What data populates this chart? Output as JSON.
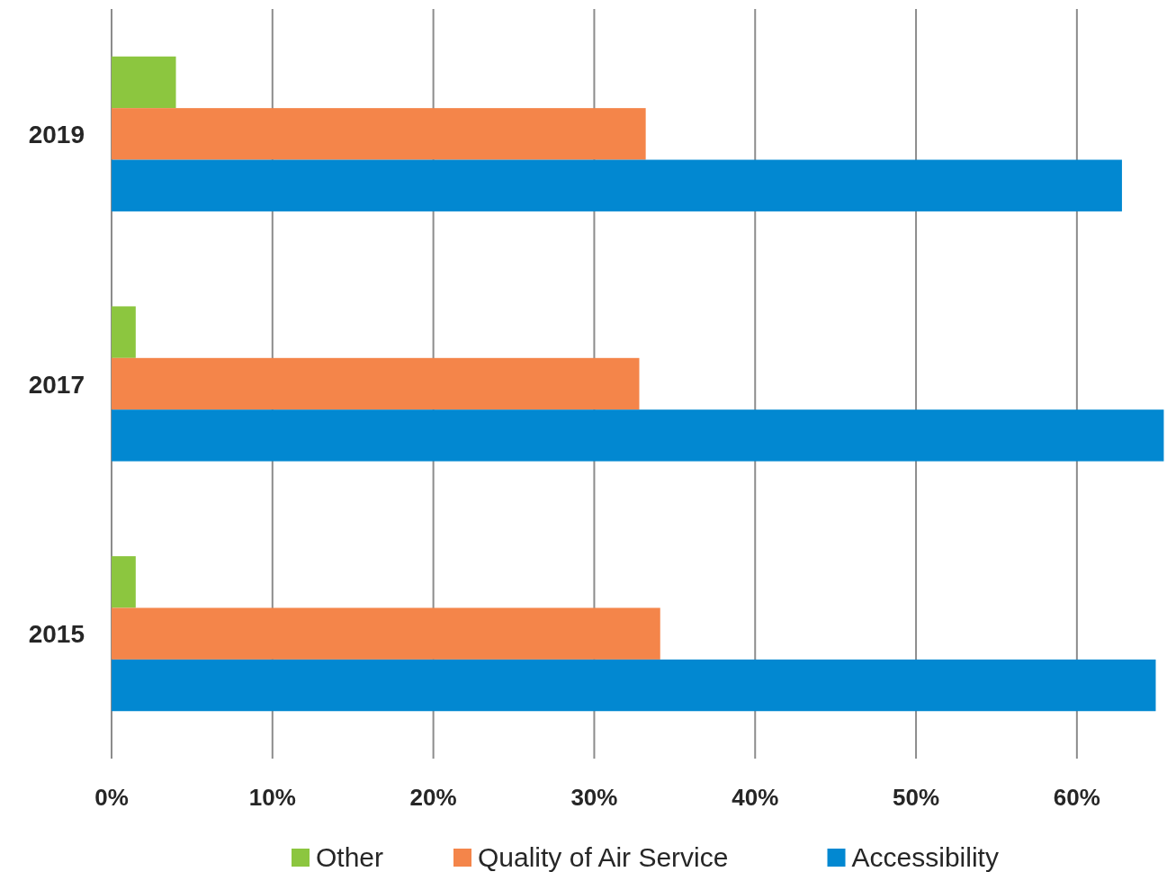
{
  "chart_data": {
    "type": "bar",
    "orientation": "horizontal",
    "categories": [
      "2019",
      "2017",
      "2015"
    ],
    "series": [
      {
        "name": "Other",
        "color": "#8cc63f",
        "values": [
          4.0,
          1.5,
          1.5
        ]
      },
      {
        "name": "Quality of Air Service",
        "color": "#f4854a",
        "values": [
          33.2,
          32.8,
          34.1
        ]
      },
      {
        "name": "Accessibility",
        "color": "#0288d1",
        "values": [
          62.8,
          65.4,
          64.9
        ]
      }
    ],
    "xlim": [
      0,
      65.6
    ],
    "xticks": [
      {
        "value": 0,
        "label": "0%"
      },
      {
        "value": 10,
        "label": "10%"
      },
      {
        "value": 20,
        "label": "20%"
      },
      {
        "value": 30,
        "label": "30%"
      },
      {
        "value": 40,
        "label": "40%"
      },
      {
        "value": 50,
        "label": "50%"
      },
      {
        "value": 60,
        "label": "60%"
      }
    ],
    "grid": "x",
    "legend": "bottom"
  }
}
